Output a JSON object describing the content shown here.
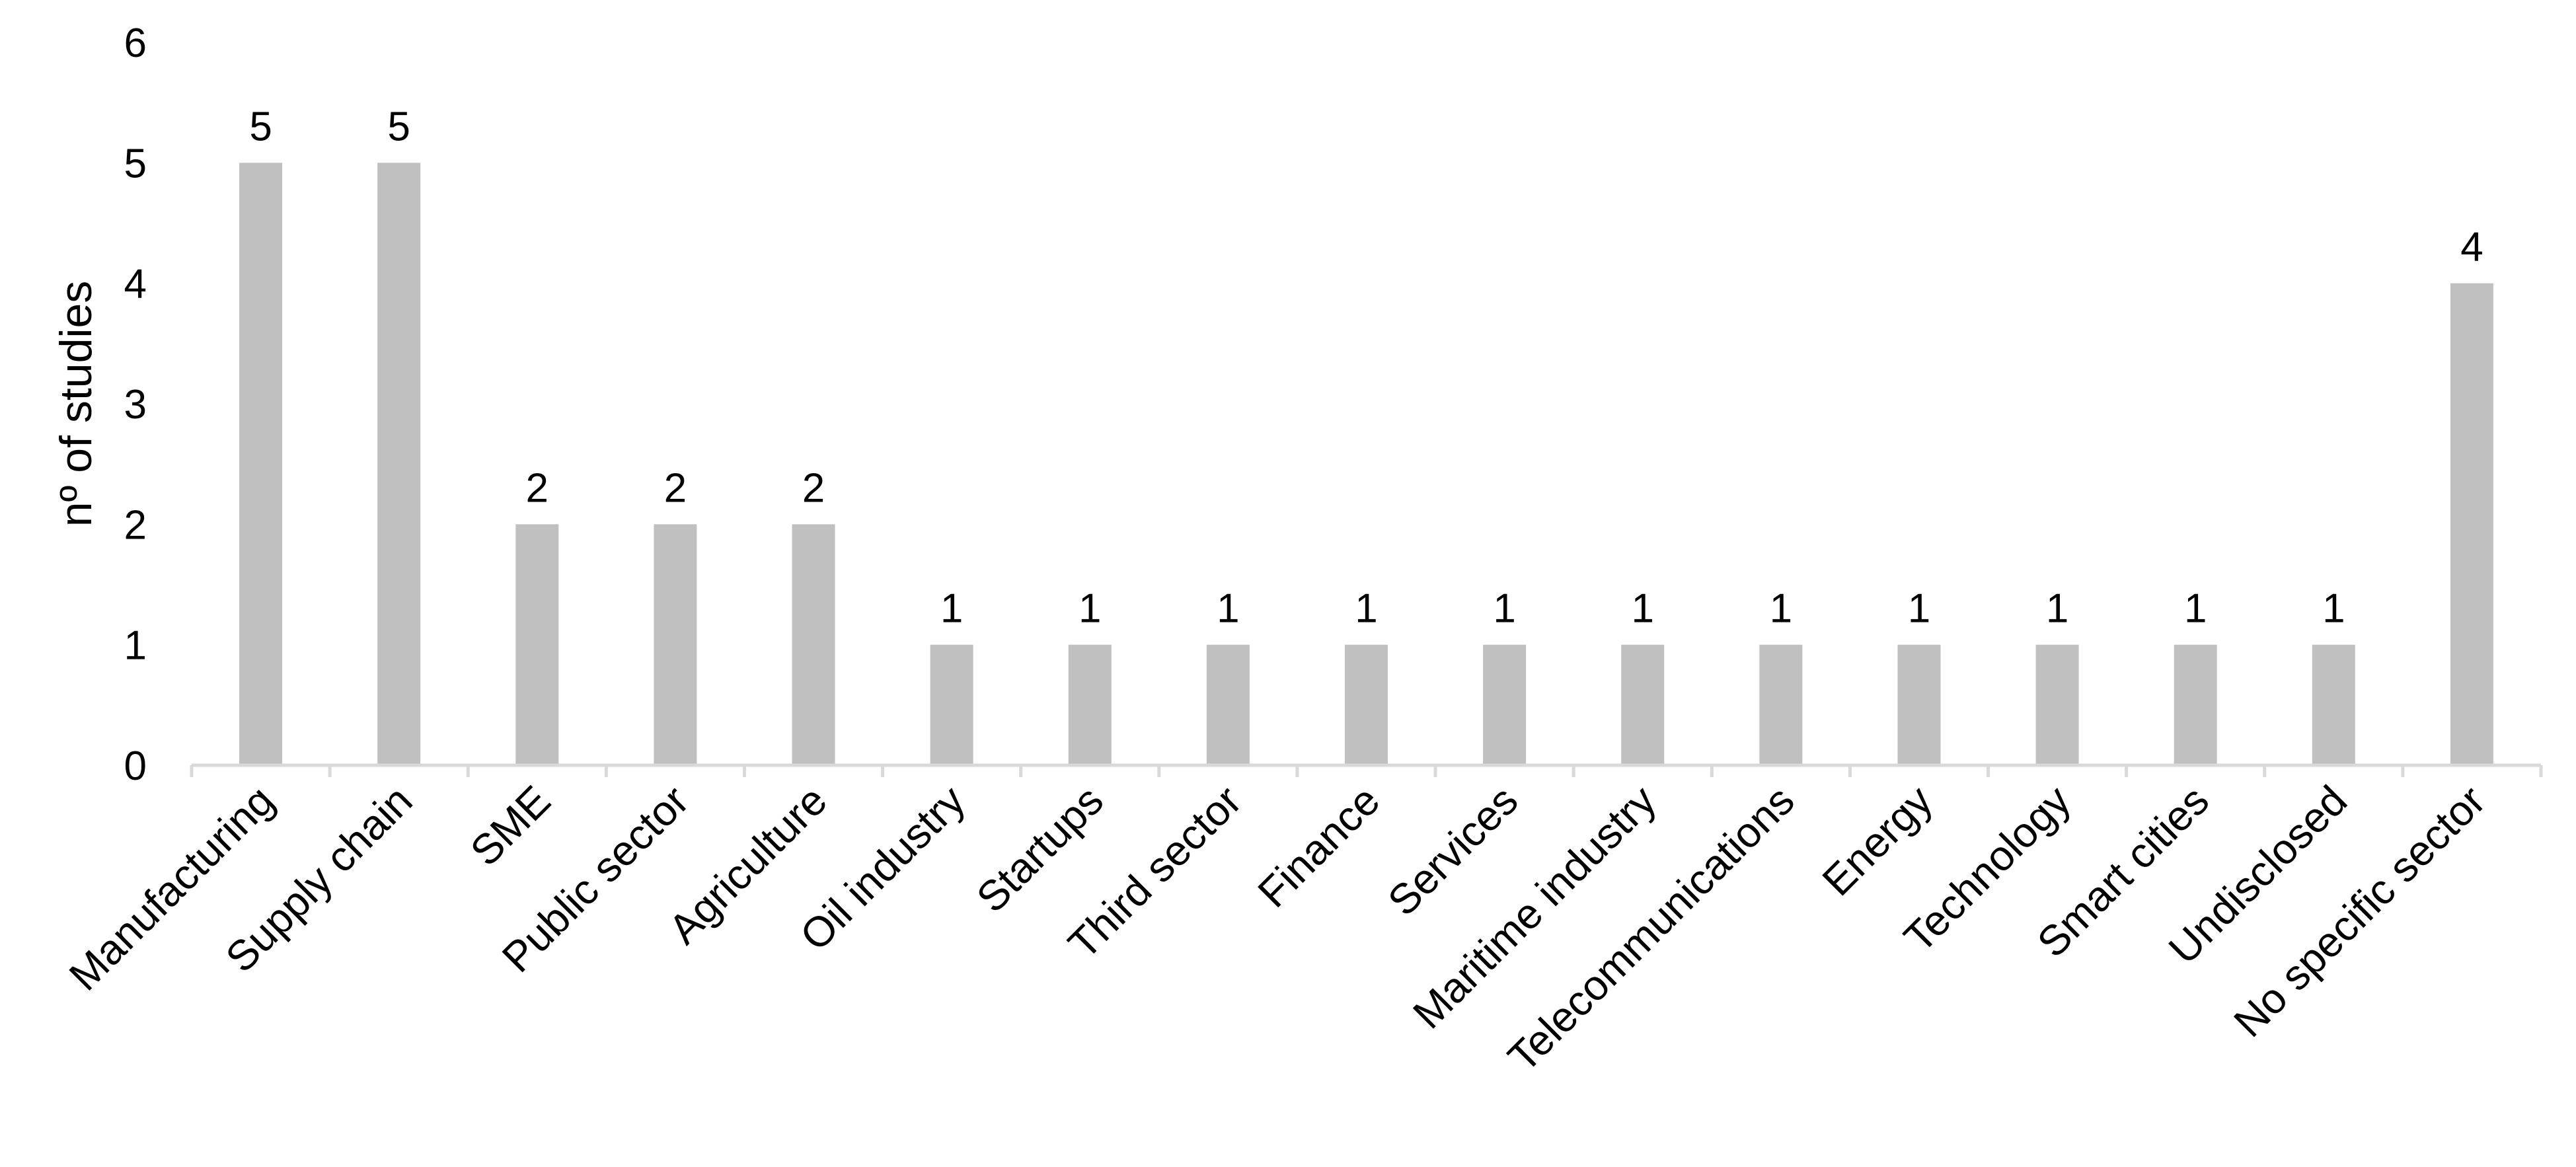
{
  "chart_data": {
    "type": "bar",
    "title": "",
    "xlabel": "",
    "ylabel": "nº of studies",
    "ylim": [
      0,
      6
    ],
    "yticks": [
      0,
      1,
      2,
      3,
      4,
      5,
      6
    ],
    "grid": false,
    "legend": "none",
    "show_data_labels": true,
    "bar_color": "#c0c0c0",
    "axis_color": "#d9d9d9",
    "categories": [
      "Manufacturing",
      "Supply chain",
      "SME",
      "Public sector",
      "Agriculture",
      "Oil industry",
      "Startups",
      "Third sector",
      "Finance",
      "Services",
      "Maritime industry",
      "Telecommunications",
      "Energy",
      "Technology",
      "Smart cities",
      "Undisclosed",
      "No specific sector"
    ],
    "values": [
      5,
      5,
      2,
      2,
      2,
      1,
      1,
      1,
      1,
      1,
      1,
      1,
      1,
      1,
      1,
      1,
      4
    ]
  }
}
